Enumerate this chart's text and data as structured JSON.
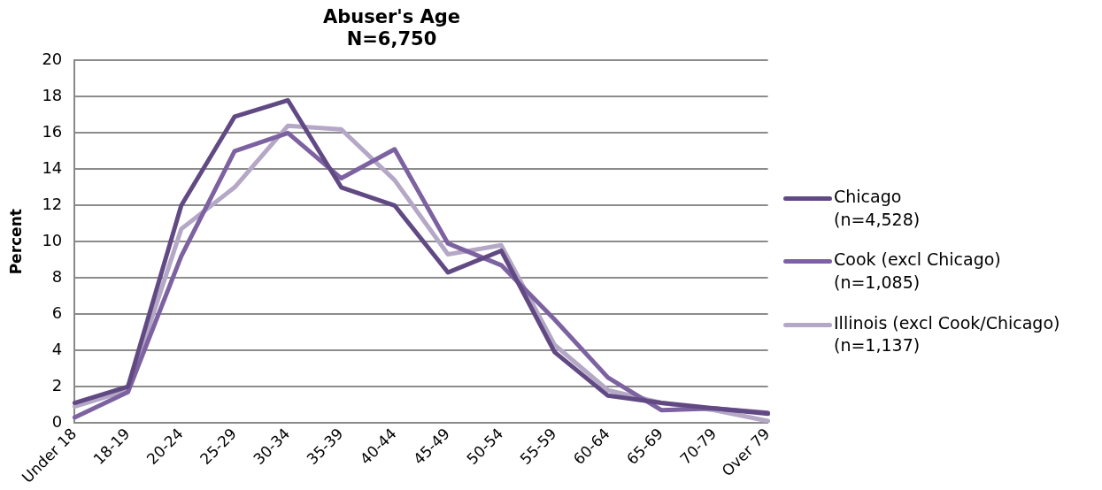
{
  "chart_data": {
    "type": "line",
    "title": "Abuser's Age",
    "subtitle": "N=6,750",
    "ylabel": "Percent",
    "categories": [
      "Under 18",
      "18-19",
      "20-24",
      "25-29",
      "30-34",
      "35-39",
      "40-44",
      "45-49",
      "50-54",
      "55-59",
      "60-64",
      "65-69",
      "70-79",
      "Over 79"
    ],
    "series": [
      {
        "name": "Chicago\n(n=4,528)",
        "color": "#614a83",
        "values": [
          1.1,
          2.0,
          12.0,
          16.9,
          17.8,
          13.0,
          12.0,
          8.3,
          9.5,
          3.9,
          1.5,
          1.1,
          0.8,
          0.5
        ]
      },
      {
        "name": "Cook (excl Chicago)\n(n=1,085)",
        "color": "#7d62a1",
        "values": [
          0.3,
          1.7,
          9.2,
          15.0,
          16.0,
          13.5,
          15.1,
          9.9,
          8.7,
          5.7,
          2.5,
          0.7,
          0.8,
          0.55
        ]
      },
      {
        "name": "Illinois (excl Cook/Chicago)\n(n=1,137)",
        "color": "#b4a8c6",
        "values": [
          0.9,
          1.8,
          10.7,
          13.0,
          16.4,
          16.2,
          13.4,
          9.3,
          9.8,
          4.3,
          1.8,
          1.1,
          0.7,
          0.1
        ]
      }
    ],
    "ylim": [
      0,
      20
    ],
    "yticks": [
      0,
      2,
      4,
      6,
      8,
      10,
      12,
      14,
      16,
      18,
      20
    ],
    "grid": "y",
    "legend": "right",
    "marker": "none",
    "line_style": "solid"
  }
}
